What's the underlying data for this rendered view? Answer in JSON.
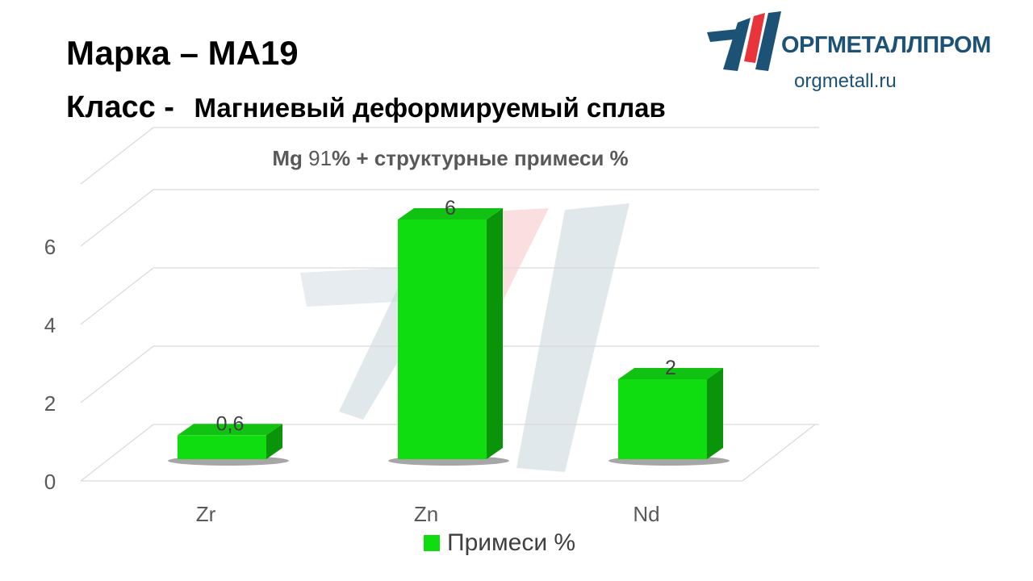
{
  "header": {
    "grade_label": "Марка",
    "dash": "–",
    "grade_value": "МА19",
    "class_label": "Класс -",
    "class_value": "Магниевый деформируемый сплав"
  },
  "logo": {
    "name": "ОРГМЕТАЛЛПРОМ",
    "site": "orgmetall.ru"
  },
  "chart_title": {
    "element": "Mg",
    "value": "91",
    "rest": "% + структурные  примеси %"
  },
  "chart_data": {
    "type": "bar",
    "title": "Mg 91% + структурные  примеси %",
    "categories": [
      "Zr",
      "Zn",
      "Nd"
    ],
    "series": [
      {
        "name": "Примеси %",
        "values": [
          0.6,
          6,
          2
        ],
        "labels": [
          "0,6",
          "6",
          "2"
        ]
      }
    ],
    "ylim": [
      0,
      6.6
    ],
    "yticks": [
      0,
      2,
      4,
      6
    ],
    "grid": true,
    "legend": "bottom",
    "three_d": true,
    "colors": {
      "bar": "#10dd10",
      "bar_top": "#12c212",
      "bar_side": "#0a940a",
      "grid": "#d9d9d9",
      "axis_text": "#595959"
    }
  }
}
